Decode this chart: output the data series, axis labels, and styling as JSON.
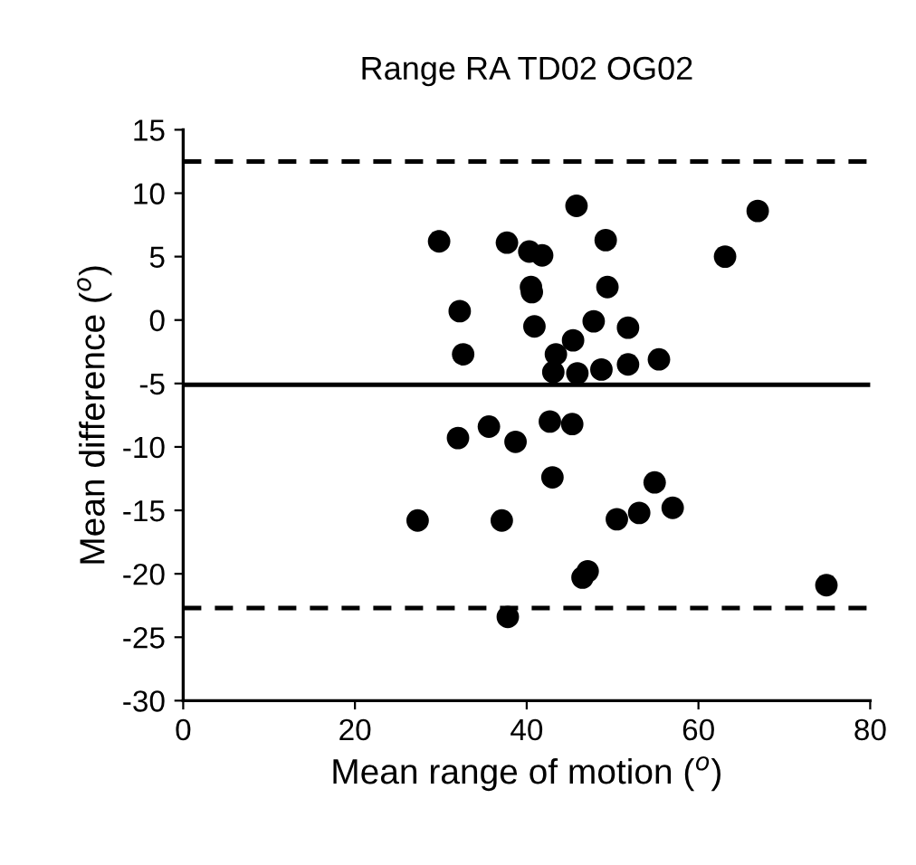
{
  "chart_data": {
    "type": "scatter",
    "title": "Range RA TD02 OG02",
    "xlabel": "Mean range of motion ($^{o}$)",
    "ylabel": "Mean difference ($^{o}$)",
    "xlim": [
      0,
      80
    ],
    "xticks": [
      0,
      20,
      40,
      60,
      80
    ],
    "ylim": [
      -30,
      15
    ],
    "yticks": [
      -30,
      -25,
      -20,
      -15,
      -10,
      -5,
      0,
      5,
      10,
      15
    ],
    "grid": false,
    "legend": false,
    "marker": "circle",
    "series": [
      {
        "color": "#000000",
        "x": [
          29.8,
          37.7,
          32.2,
          32.6,
          32.0,
          35.6,
          38.7,
          27.3,
          37.1,
          37.8,
          45.8,
          66.9,
          40.3,
          41.8,
          49.2,
          63.1,
          40.6,
          40.5,
          49.4,
          40.9,
          47.8,
          51.8,
          45.4,
          43.4,
          43.1,
          45.9,
          48.7,
          51.8,
          55.4,
          42.7,
          45.3,
          43.0,
          54.9,
          57.0,
          53.1,
          50.5,
          47.1,
          46.5,
          74.9
        ],
        "values": [
          6.2,
          6.1,
          0.7,
          -2.7,
          -9.3,
          -8.4,
          -9.6,
          -15.8,
          -15.8,
          -23.4,
          9.0,
          8.6,
          5.4,
          5.1,
          6.3,
          5.0,
          2.2,
          2.6,
          2.6,
          -0.5,
          -0.1,
          -0.6,
          -1.6,
          -2.7,
          -4.1,
          -4.2,
          -3.9,
          -3.5,
          -3.1,
          -8.0,
          -8.2,
          -12.4,
          -12.8,
          -14.8,
          -15.2,
          -15.7,
          -19.8,
          -20.3,
          -20.9
        ]
      }
    ],
    "ref_lines": [
      {
        "axis": "y",
        "value": 12.5,
        "line_style": "dashed",
        "color": "#000000"
      },
      {
        "axis": "y",
        "value": -5.1,
        "line_style": "solid",
        "color": "#000000"
      },
      {
        "axis": "y",
        "value": -22.7,
        "line_style": "dashed",
        "color": "#000000"
      }
    ]
  }
}
